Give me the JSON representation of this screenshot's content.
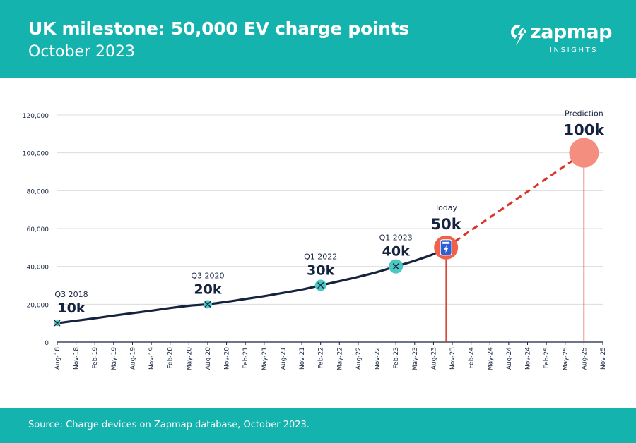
{
  "header": {
    "title": "UK milestone: 50,000 EV charge points",
    "subtitle": "October 2023"
  },
  "logo": {
    "name": "zapmap",
    "tagline": "INSIGHTS",
    "icon": "lightning-bolt-icon"
  },
  "footer": {
    "source": "Source: Charge devices on Zapmap database, October 2023."
  },
  "colors": {
    "brand": "#15b3ad",
    "line": "#16233f",
    "milestone": "#4cc8c3",
    "today": "#f0614a",
    "prediction": "#f48f80",
    "prediction_line": "#d9352a"
  },
  "chart_data": {
    "type": "line",
    "title": "UK milestone: 50,000 EV charge points",
    "xlabel": "",
    "ylabel": "",
    "ylim": [
      0,
      120000
    ],
    "yticks": [
      0,
      20000,
      40000,
      60000,
      80000,
      100000,
      120000
    ],
    "ytick_labels": [
      "0",
      "20,000",
      "40,000",
      "60,000",
      "80,000",
      "100,000",
      "120,000"
    ],
    "grid": true,
    "x_tick_labels": [
      "Aug-18",
      "Nov-18",
      "Feb-19",
      "May-19",
      "Aug-19",
      "Nov-19",
      "Feb-20",
      "May-20",
      "Aug-20",
      "Nov-20",
      "Feb-21",
      "May-21",
      "Aug-21",
      "Nov-21",
      "Feb-22",
      "May-22",
      "Aug-22",
      "Nov-22",
      "Feb-23",
      "May-23",
      "Aug-23",
      "Nov-23",
      "Feb-24",
      "May-24",
      "Aug-24",
      "Nov-24",
      "Feb-25",
      "May-25",
      "Aug-25",
      "Nov-25"
    ],
    "series": [
      {
        "style": "solid",
        "x": [
          "Aug-18",
          "Nov-18",
          "Feb-19",
          "May-19",
          "Aug-19",
          "Nov-19",
          "Feb-20",
          "May-20",
          "Aug-20",
          "Nov-20",
          "Feb-21",
          "May-21",
          "Aug-21",
          "Nov-21",
          "Feb-22",
          "May-22",
          "Aug-22",
          "Nov-22",
          "Feb-23",
          "May-23",
          "Aug-23",
          "Oct-23"
        ],
        "values": [
          10000,
          11300,
          12600,
          14000,
          15300,
          16600,
          18000,
          19200,
          20000,
          21300,
          22800,
          24300,
          26000,
          27800,
          30000,
          32200,
          34500,
          37000,
          40000,
          43000,
          46500,
          50000
        ]
      },
      {
        "style": "dashed",
        "x": [
          "Oct-23",
          "Aug-25"
        ],
        "values": [
          50000,
          100000
        ]
      }
    ],
    "annotations": [
      {
        "date": "Aug-18",
        "value": 10000,
        "label": "Q3 2018",
        "value_label": "10k",
        "kind": "milestone"
      },
      {
        "date": "Aug-20",
        "value": 20000,
        "label": "Q3 2020",
        "value_label": "20k",
        "kind": "milestone"
      },
      {
        "date": "Feb-22",
        "value": 30000,
        "label": "Q1 2022",
        "value_label": "30k",
        "kind": "milestone"
      },
      {
        "date": "Feb-23",
        "value": 40000,
        "label": "Q1 2023",
        "value_label": "40k",
        "kind": "milestone"
      },
      {
        "date": "Oct-23",
        "value": 50000,
        "label": "Today",
        "value_label": "50k",
        "kind": "today",
        "icon": "charger-icon"
      },
      {
        "date": "Aug-25",
        "value": 100000,
        "label": "Prediction",
        "value_label": "100k",
        "kind": "prediction"
      }
    ]
  }
}
